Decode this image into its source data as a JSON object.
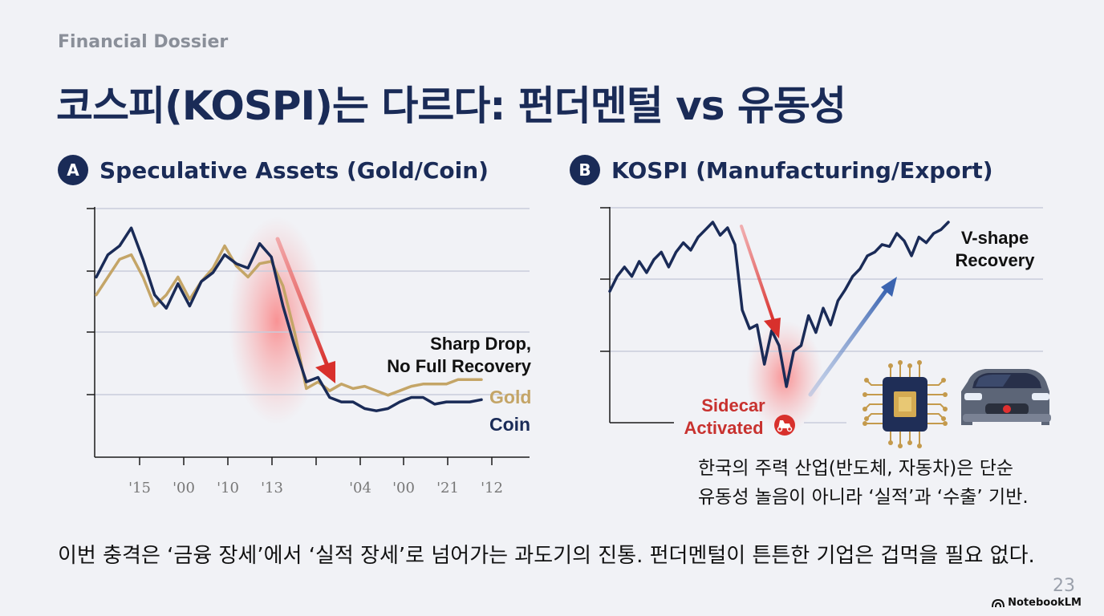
{
  "header": {
    "kicker": "Financial Dossier",
    "title": "코스피(KOSPI)는 다르다: 펀더멘털 vs 유동성"
  },
  "panel_a": {
    "badge": "A",
    "title": "Speculative Assets (Gold/Coin)"
  },
  "panel_b": {
    "badge": "B",
    "title": "KOSPI (Manufacturing/Export)"
  },
  "notes": {
    "line1": "한국의 주력 산업(반도체, 자동차)은 단순",
    "line2": "유동성 놀음이 아니라 ‘실적’과 ‘수출’ 기반."
  },
  "footer": {
    "text": "이번 충격은 ‘금융 장세’에서 ‘실적 장세’로 넘어가는 과도기의 진통. 펀더멘털이 튼튼한 기업은 겁먹을 필요 없다.",
    "page": "23",
    "brand": "NotebookLM"
  },
  "colors": {
    "navy": "#1a2b57",
    "gold": "#c4a567",
    "red": "#d83a3a",
    "blue": "#4a72b8",
    "grid": "#c9ccdc"
  },
  "chart_data": [
    {
      "type": "line",
      "title": "Speculative Assets (Gold/Coin)",
      "xlabel": "",
      "ylabel": "",
      "x_ticks": [
        "'15",
        "'00",
        "'10",
        "'13",
        "'04",
        "'00",
        "'21",
        "'12"
      ],
      "ylim": [
        0,
        100
      ],
      "grid": true,
      "series": [
        {
          "name": "Gold",
          "color": "#c4a567",
          "values": [
            62,
            70,
            78,
            80,
            70,
            57,
            62,
            70,
            60,
            68,
            74,
            84,
            75,
            70,
            76,
            77,
            66,
            45,
            20,
            23,
            19,
            22,
            20,
            21,
            19,
            17,
            19,
            21,
            22,
            22,
            22,
            24,
            24,
            24
          ]
        },
        {
          "name": "Coin",
          "color": "#1a2b57",
          "values": [
            70,
            80,
            84,
            92,
            78,
            62,
            56,
            67,
            57,
            68,
            72,
            80,
            76,
            74,
            85,
            79,
            57,
            39,
            23,
            25,
            16,
            14,
            14,
            11,
            10,
            11,
            14,
            16,
            16,
            13,
            14,
            14,
            14,
            15
          ]
        }
      ],
      "annotations": [
        {
          "label_line1": "Sharp Drop,",
          "label_line2": "No Full Recovery"
        }
      ]
    },
    {
      "type": "line",
      "title": "KOSPI (Manufacturing/Export)",
      "xlabel": "",
      "ylabel": "",
      "ylim": [
        0,
        100
      ],
      "grid": true,
      "series": [
        {
          "name": "KOSPI",
          "color": "#1a2b57",
          "values": [
            60,
            68,
            73,
            68,
            76,
            70,
            77,
            81,
            73,
            81,
            86,
            82,
            89,
            93,
            97,
            90,
            94,
            85,
            50,
            40,
            42,
            21,
            39,
            31,
            9,
            28,
            31,
            47,
            38,
            51,
            42,
            55,
            61,
            68,
            72,
            79,
            81,
            85,
            84,
            91,
            87,
            79,
            89,
            86,
            91,
            93,
            97
          ]
        }
      ],
      "annotations": [
        {
          "label_line1": "V-shape",
          "label_line2": "Recovery"
        },
        {
          "label_line1": "Sidecar",
          "label_line2": "Activated"
        }
      ]
    }
  ]
}
